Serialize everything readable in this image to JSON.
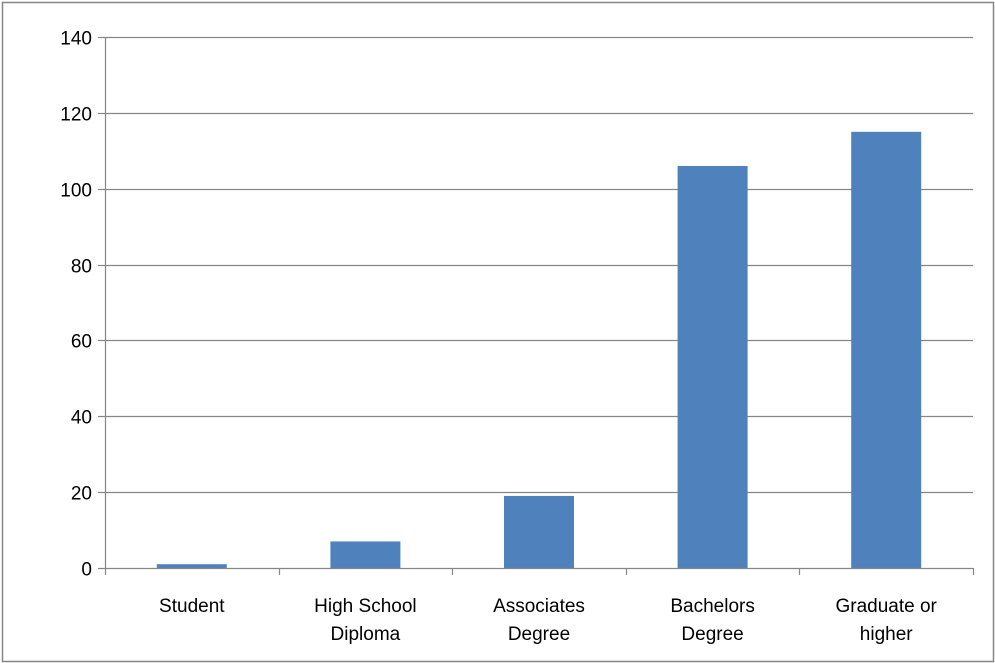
{
  "chart_data": {
    "type": "bar",
    "categories": [
      [
        "Student"
      ],
      [
        "High School",
        "Diploma"
      ],
      [
        "Associates",
        "Degree"
      ],
      [
        "Bachelors",
        "Degree"
      ],
      [
        "Graduate or",
        "higher"
      ]
    ],
    "values": [
      1,
      7,
      19,
      106,
      115
    ],
    "title": "",
    "xlabel": "",
    "ylabel": "",
    "ylim": [
      0,
      140
    ],
    "yticks": [
      0,
      20,
      40,
      60,
      80,
      100,
      120,
      140
    ],
    "grid": true,
    "legend": "none",
    "bar_color": "#4F81BD",
    "gridline_color": "#868686",
    "axis_color": "#868686",
    "frame_color": "#868686"
  }
}
